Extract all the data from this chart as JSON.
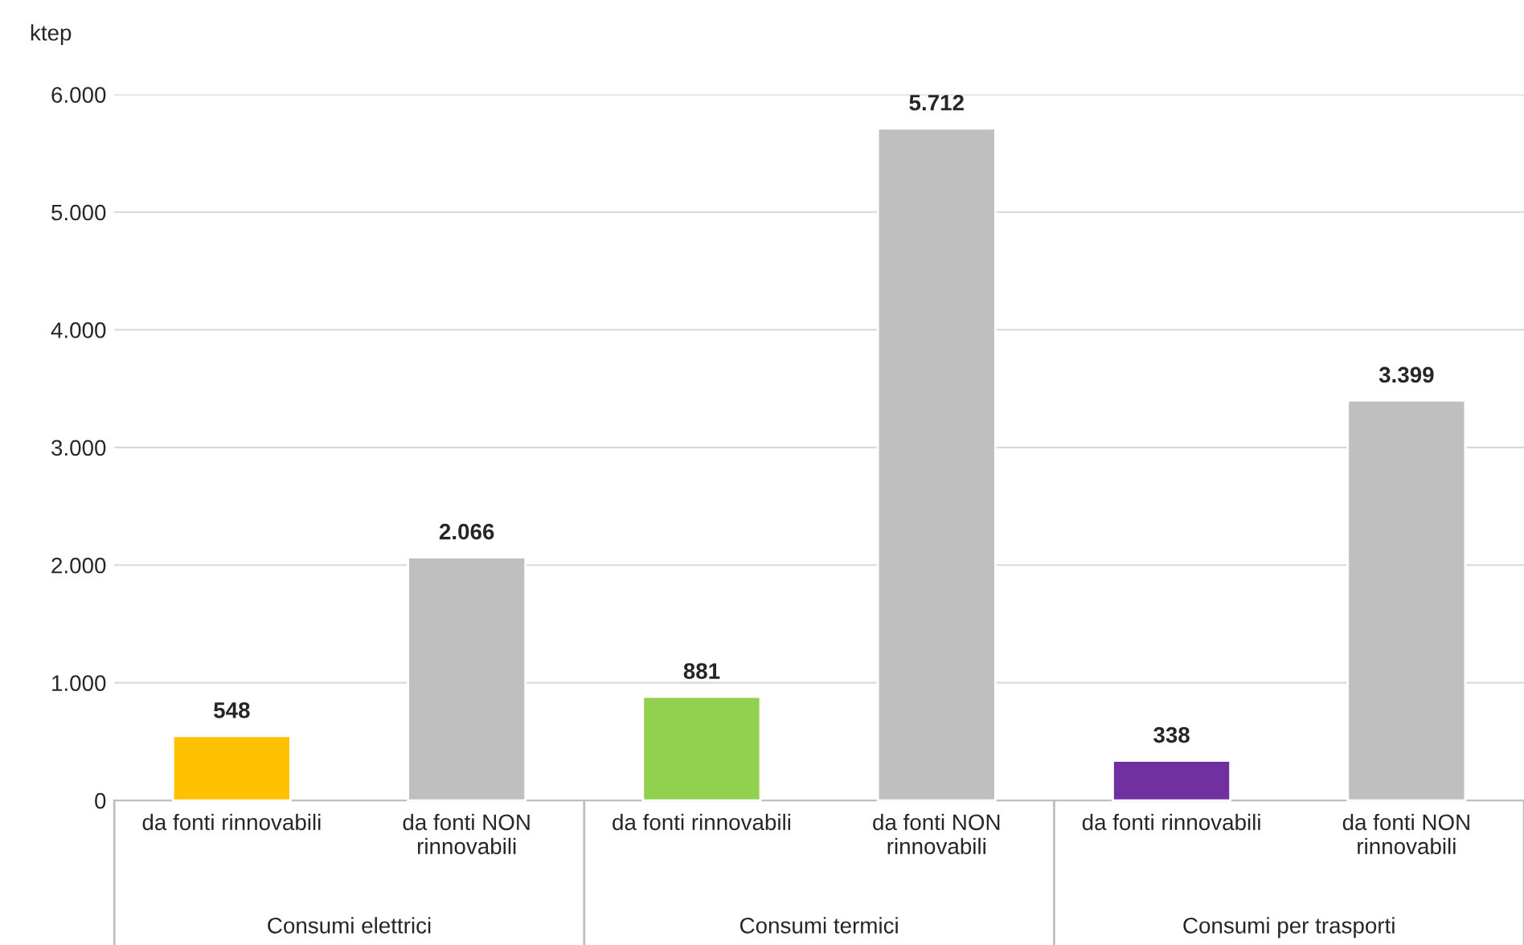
{
  "chart_data": {
    "type": "bar",
    "ylabel": "ktep",
    "categories": [
      "da fonti rinnovabili",
      "da fonti NON\nrinnovabili",
      "da fonti rinnovabili",
      "da fonti NON\nrinnovabili",
      "da fonti rinnovabili",
      "da fonti NON\nrinnovabili"
    ],
    "values": [
      548,
      2066,
      881,
      5712,
      338,
      3399
    ],
    "colors": [
      "#ffc000",
      "#bfbfbf",
      "#92d050",
      "#bfbfbf",
      "#7030a0",
      "#bfbfbf"
    ],
    "value_labels": [
      "548",
      "2.066",
      "881",
      "5.712",
      "338",
      "3.399"
    ],
    "annotations": [
      "Consumi elettrici",
      "Consumi termici",
      "Consumi per trasporti"
    ],
    "ylim": [
      0,
      6000
    ],
    "yticks": [
      {
        "value": 0,
        "label": "0"
      },
      {
        "value": 1000,
        "label": "1.000"
      },
      {
        "value": 2000,
        "label": "2.000"
      },
      {
        "value": 3000,
        "label": "3.000"
      },
      {
        "value": 4000,
        "label": "4.000"
      },
      {
        "value": 5000,
        "label": "5.000"
      },
      {
        "value": 6000,
        "label": "6.000"
      }
    ],
    "grid": "y"
  }
}
